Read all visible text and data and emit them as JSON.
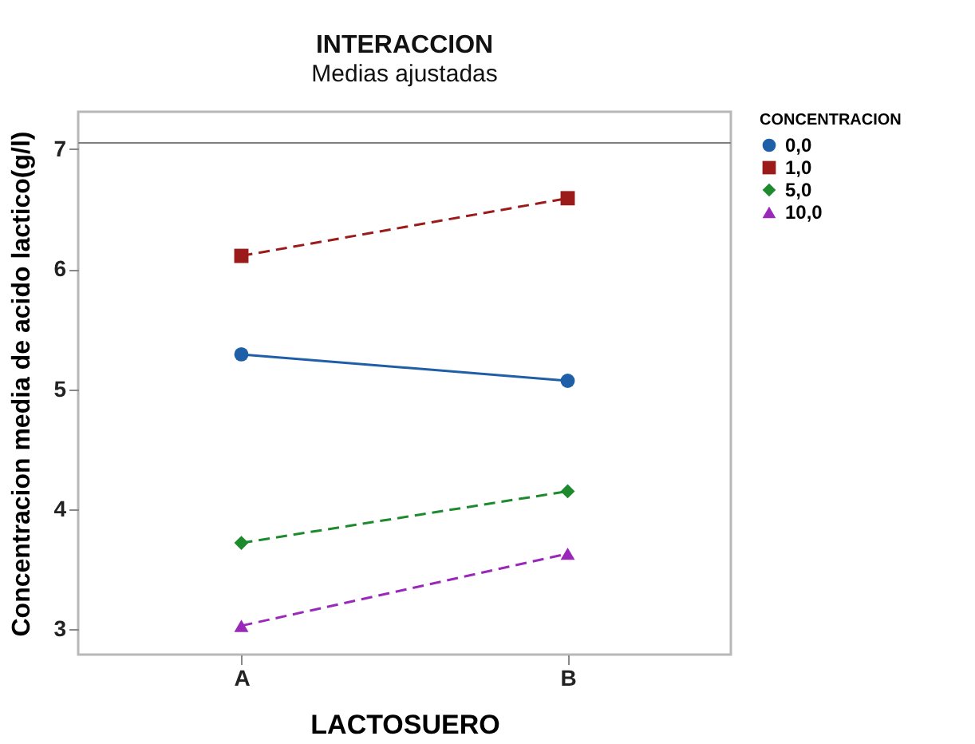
{
  "chart_data": {
    "type": "line",
    "title": "INTERACCION",
    "subtitle": "Medias ajustadas",
    "xlabel": "LACTOSUERO",
    "ylabel": "Concentracion media de acido lactico(g/l)",
    "legend_title": "CONCENTRACION",
    "legend": "right",
    "categories": [
      "A",
      "B"
    ],
    "ylim": [
      2.79,
      7.31
    ],
    "yticks": [
      3,
      4,
      5,
      6,
      7
    ],
    "ref_lines": [
      {
        "axis": "y",
        "value": 7.05,
        "color": "#808080"
      }
    ],
    "series": [
      {
        "name": "0,0",
        "color": "#1f5fa8",
        "values": [
          5.29,
          5.07
        ],
        "marker": "circle",
        "line_style": "solid"
      },
      {
        "name": "1,0",
        "color": "#9b1b1b",
        "values": [
          6.11,
          6.59
        ],
        "marker": "square",
        "line_style": "dashed"
      },
      {
        "name": "5,0",
        "color": "#1e8a2e",
        "values": [
          3.72,
          4.15
        ],
        "marker": "diamond",
        "line_style": "dashed"
      },
      {
        "name": "10,0",
        "color": "#9a28b8",
        "values": [
          3.03,
          3.63
        ],
        "marker": "triangle",
        "line_style": "dashed"
      }
    ]
  }
}
